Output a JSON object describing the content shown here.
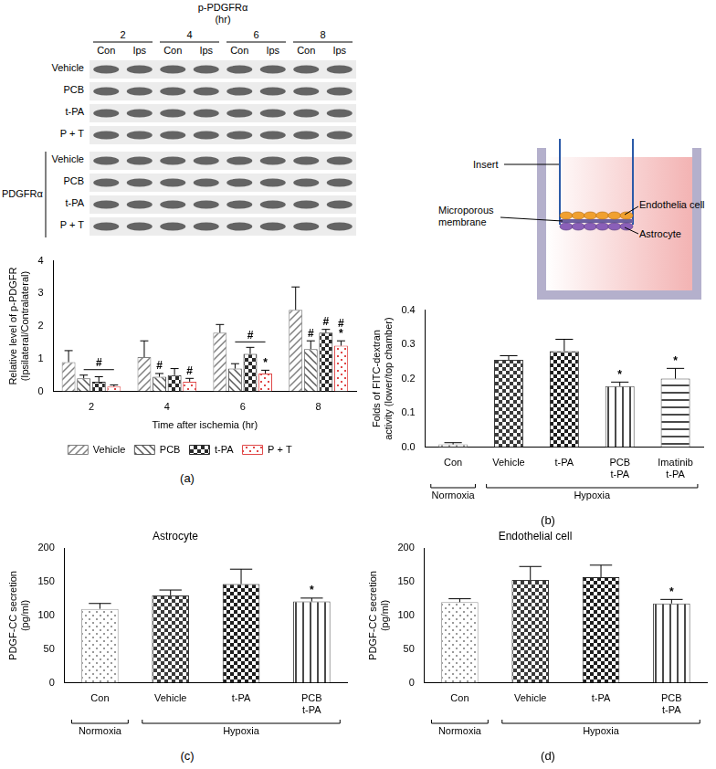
{
  "blot": {
    "title": "p-PDGFRα",
    "unit": "(hr)",
    "times": [
      "2",
      "4",
      "6",
      "8"
    ],
    "lanes": [
      "Con",
      "Ips"
    ],
    "phospho_rows": [
      "Vehicle",
      "PCB",
      "t-PA",
      "P + T"
    ],
    "total_label": "PDGFRα",
    "total_rows": [
      "Vehicle",
      "PCB",
      "t-PA",
      "P + T"
    ]
  },
  "diagram": {
    "insert": "Insert",
    "membrane": "Microporous membrane",
    "endothelial": "Endothelia cell",
    "astrocyte": "Astrocyte"
  },
  "panel_labels": [
    "(a)",
    "(b)",
    "(c)",
    "(d)"
  ],
  "chart_data": [
    {
      "type": "bar",
      "x_label": "Time after ischemia (hr)",
      "y_label": [
        "Relative level of p-PDGFR",
        "(Ipsilateral/Contralateral)"
      ],
      "categories": [
        "2",
        "4",
        "6",
        "8"
      ],
      "series": [
        {
          "name": "Vehicle",
          "color": "#808080",
          "values": [
            0.9,
            1.05,
            1.8,
            2.5
          ],
          "errors": [
            0.35,
            0.5,
            0.25,
            0.7
          ]
        },
        {
          "name": "PCB",
          "color": "#5a5a5a",
          "values": [
            0.4,
            0.45,
            0.7,
            1.3
          ],
          "errors": [
            0.1,
            0.1,
            0.15,
            0.25
          ]
        },
        {
          "name": "t-PA",
          "color": "#2a2a2a",
          "values": [
            0.3,
            0.5,
            1.15,
            1.8
          ],
          "errors": [
            0.15,
            0.2,
            0.2,
            0.1
          ]
        },
        {
          "name": "P + T",
          "color": "#e04848",
          "values": [
            0.15,
            0.3,
            0.55,
            1.4
          ],
          "errors": [
            0.05,
            0.1,
            0.1,
            0.15
          ]
        }
      ],
      "ylim": [
        0,
        4
      ],
      "yticks": [
        0,
        1,
        2,
        3,
        4
      ],
      "grid": false,
      "legend": "bottom",
      "annotations": [
        {
          "category": "2",
          "series": [
            "PCB",
            "P + T"
          ],
          "text": "#"
        },
        {
          "category": "4",
          "series": "PCB",
          "text": "#"
        },
        {
          "category": "4",
          "series": "P + T",
          "text": "#"
        },
        {
          "category": "6",
          "series": [
            "PCB",
            "P + T"
          ],
          "text": "#"
        },
        {
          "category": "6",
          "series": "P + T",
          "text": "*"
        },
        {
          "category": "8",
          "series": "PCB",
          "text": "#"
        },
        {
          "category": "8",
          "series": "t-PA",
          "text": "#"
        },
        {
          "category": "8",
          "series": "P + T",
          "text": "*"
        },
        {
          "category": "8",
          "series": "P + T",
          "text": "#"
        }
      ]
    },
    {
      "type": "bar",
      "y_label": [
        "Folds of FITC-dextran",
        "activity (lower/top chamber)"
      ],
      "categories": [
        "Con",
        "Vehicle",
        "t-PA",
        "PCB t-PA",
        "Imatinib t-PA"
      ],
      "values": [
        0.008,
        0.255,
        0.28,
        0.178,
        0.2
      ],
      "errors": [
        0.005,
        0.012,
        0.035,
        0.012,
        0.03
      ],
      "colors": [
        "#9a9a9a",
        "#3a3a3a",
        "#1e1e1e",
        "#4a4a4a",
        "#4a4a4a"
      ],
      "ylim": [
        0,
        0.4
      ],
      "yticks": [
        {
          "value": 0,
          "label": "0.0"
        },
        {
          "value": 0.1,
          "label": "0.1"
        },
        {
          "value": 0.2,
          "label": "0.2"
        },
        {
          "value": 0.3,
          "label": "0.3"
        },
        {
          "value": 0.4,
          "label": "0.4"
        }
      ],
      "grid": false,
      "groups": [
        {
          "label": "Normoxia",
          "categories": [
            "Con"
          ]
        },
        {
          "label": "Hypoxia",
          "categories": [
            "Vehicle",
            "t-PA",
            "PCB t-PA",
            "Imatinib t-PA"
          ]
        }
      ],
      "annotations": [
        {
          "category": "PCB t-PA",
          "text": "*"
        },
        {
          "category": "Imatinib t-PA",
          "text": "*"
        }
      ]
    },
    {
      "type": "bar",
      "title": "Astrocyte",
      "y_label": [
        "PDGF-CC secretion",
        "(pg/ml)"
      ],
      "categories": [
        "Con",
        "Vehicle",
        "t-PA",
        "PCB t-PA"
      ],
      "values": [
        110,
        130,
        147,
        121
      ],
      "errors": [
        8,
        8,
        22,
        5
      ],
      "colors": [
        "#9a9a9a",
        "#3a3a3a",
        "#1e1e1e",
        "#4a4a4a"
      ],
      "ylim": [
        0,
        200
      ],
      "yticks": [
        0,
        50,
        100,
        150,
        200
      ],
      "grid": false,
      "groups": [
        {
          "label": "Normoxia",
          "categories": [
            "Con"
          ]
        },
        {
          "label": "Hypoxia",
          "categories": [
            "Vehicle",
            "t-PA",
            "PCB t-PA"
          ]
        }
      ],
      "annotations": [
        {
          "category": "PCB t-PA",
          "text": "*"
        }
      ]
    },
    {
      "type": "bar",
      "title": "Endothelial cell",
      "y_label": [
        "PDGF-CC secretion",
        "(pg/ml)"
      ],
      "categories": [
        "Con",
        "Vehicle",
        "t-PA",
        "PCB t-PA"
      ],
      "values": [
        120,
        153,
        157,
        118
      ],
      "errors": [
        5,
        20,
        18,
        6
      ],
      "colors": [
        "#9a9a9a",
        "#3a3a3a",
        "#1e1e1e",
        "#4a4a4a"
      ],
      "ylim": [
        0,
        200
      ],
      "yticks": [
        0,
        50,
        100,
        150,
        200
      ],
      "grid": false,
      "groups": [
        {
          "label": "Normoxia",
          "categories": [
            "Con"
          ]
        },
        {
          "label": "Hypoxia",
          "categories": [
            "Vehicle",
            "t-PA",
            "PCB t-PA"
          ]
        }
      ],
      "annotations": [
        {
          "category": "PCB t-PA",
          "text": "*"
        }
      ]
    }
  ]
}
